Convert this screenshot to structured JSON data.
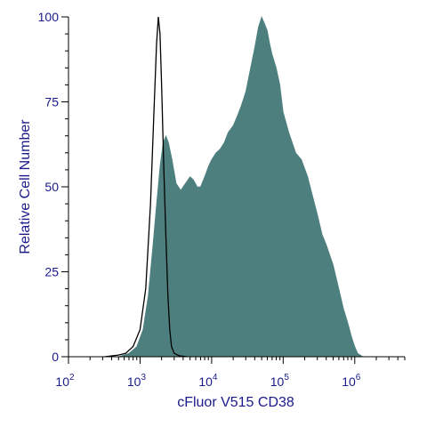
{
  "chart_data": {
    "type": "area",
    "title": "",
    "xlabel": "cFluor V515 CD38",
    "ylabel": "Relative Cell Number",
    "x_scale": "log",
    "xlim": [
      100,
      5000000
    ],
    "ylim": [
      0,
      100
    ],
    "x_ticks": [
      {
        "value": 100,
        "base": "10",
        "exp": "2"
      },
      {
        "value": 1000,
        "base": "10",
        "exp": "3"
      },
      {
        "value": 10000,
        "base": "10",
        "exp": "4"
      },
      {
        "value": 100000,
        "base": "10",
        "exp": "5"
      },
      {
        "value": 1000000,
        "base": "10",
        "exp": "6"
      }
    ],
    "y_ticks": [
      {
        "value": 0,
        "label": "0"
      },
      {
        "value": 25,
        "label": "25"
      },
      {
        "value": 50,
        "label": "50"
      },
      {
        "value": 75,
        "label": "75"
      },
      {
        "value": 100,
        "label": "100"
      }
    ],
    "grid": false,
    "series": [
      {
        "style": "outline",
        "x": [
          320,
          500,
          630,
          800,
          1000,
          1200,
          1400,
          1550,
          1700,
          1800,
          1900,
          2000,
          2150,
          2300,
          2450,
          2600,
          2750,
          3000,
          3500,
          4500
        ],
        "y": [
          0,
          0.5,
          1,
          3,
          8,
          20,
          45,
          70,
          92,
          100,
          95,
          80,
          55,
          35,
          18,
          8,
          3,
          1,
          0.3,
          0
        ]
      },
      {
        "style": "filled",
        "x": [
          500,
          700,
          900,
          1100,
          1300,
          1500,
          1700,
          1900,
          2100,
          2300,
          2500,
          2800,
          3200,
          3700,
          4300,
          5000,
          5600,
          6300,
          7000,
          8000,
          9000,
          10000,
          11500,
          13000,
          15000,
          17000,
          20000,
          23000,
          26000,
          30000,
          35000,
          40000,
          45000,
          50000,
          55000,
          60000,
          65000,
          70000,
          80000,
          90000,
          100000,
          120000,
          150000,
          180000,
          220000,
          260000,
          300000,
          350000,
          400000,
          500000,
          600000,
          700000,
          800000,
          900000,
          1000000,
          1100000,
          1300000
        ],
        "y": [
          0,
          1,
          3,
          8,
          18,
          32,
          45,
          56,
          63,
          65,
          63,
          58,
          51,
          49,
          51,
          53,
          52,
          50,
          50,
          53,
          56,
          58,
          60,
          61,
          63,
          66,
          68,
          71,
          74,
          78,
          85,
          91,
          97,
          100,
          98,
          96,
          92,
          89,
          85,
          80,
          72,
          66,
          60,
          58,
          53,
          47,
          42,
          36,
          33,
          27,
          20,
          14,
          10,
          6,
          3,
          1,
          0
        ]
      }
    ],
    "colors": {
      "fill": "#4e7f7f",
      "outline": "#000000",
      "axis": "#000000",
      "text": "#1a1a8c"
    }
  }
}
